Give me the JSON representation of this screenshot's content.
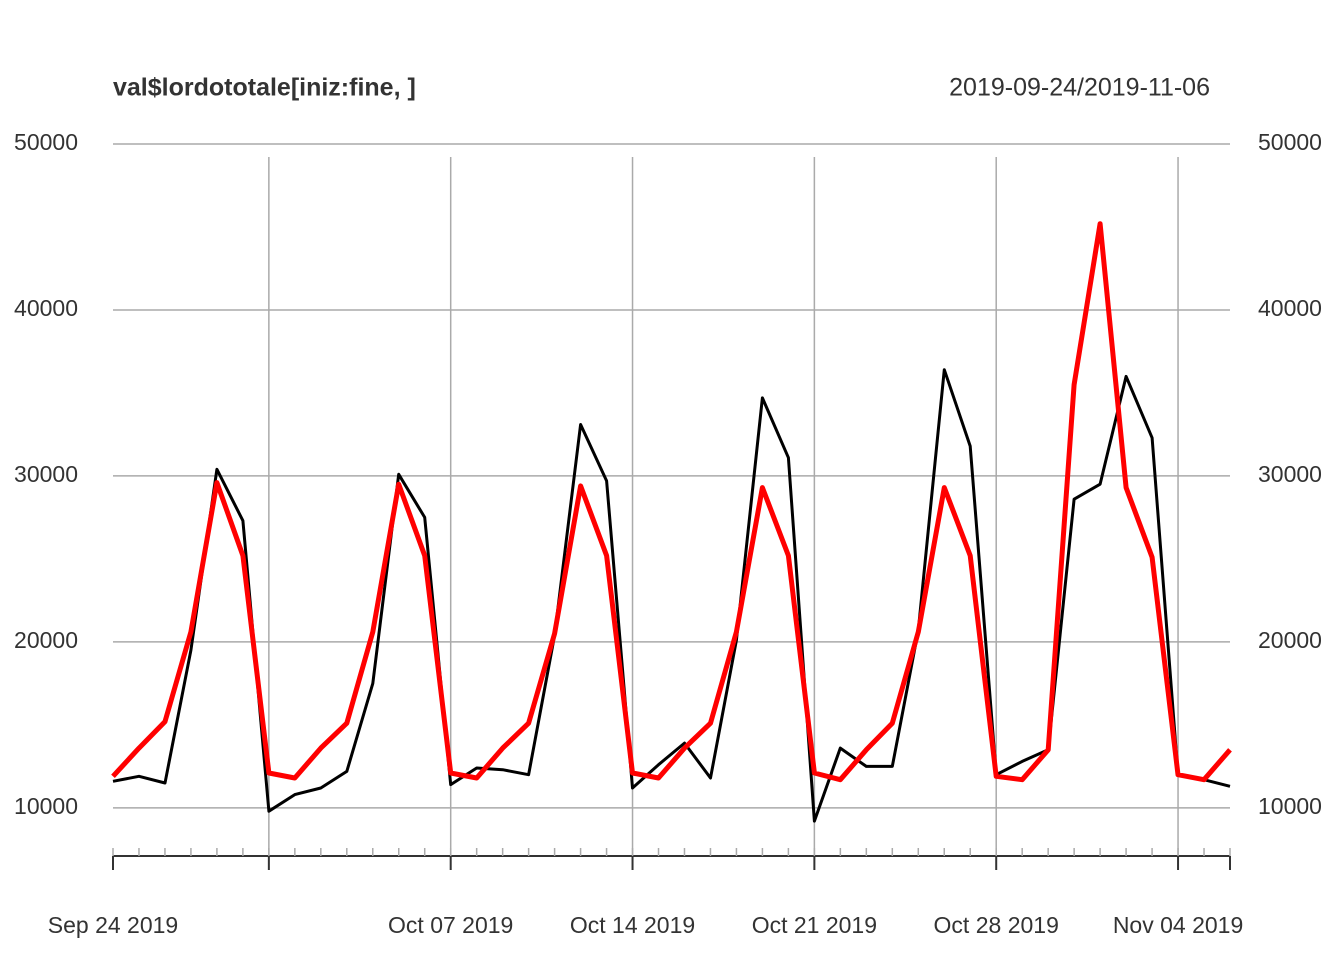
{
  "chart_data": {
    "type": "line",
    "title": "val$lordototale[iniz:fine, ]",
    "subtitle": "2019-09-24/2019-11-06",
    "x": [
      "2019-09-24",
      "2019-09-25",
      "2019-09-26",
      "2019-09-27",
      "2019-09-28",
      "2019-09-29",
      "2019-09-30",
      "2019-10-01",
      "2019-10-02",
      "2019-10-03",
      "2019-10-04",
      "2019-10-05",
      "2019-10-06",
      "2019-10-07",
      "2019-10-08",
      "2019-10-09",
      "2019-10-10",
      "2019-10-11",
      "2019-10-12",
      "2019-10-13",
      "2019-10-14",
      "2019-10-15",
      "2019-10-16",
      "2019-10-17",
      "2019-10-18",
      "2019-10-19",
      "2019-10-20",
      "2019-10-21",
      "2019-10-22",
      "2019-10-23",
      "2019-10-24",
      "2019-10-25",
      "2019-10-26",
      "2019-10-27",
      "2019-10-28",
      "2019-10-29",
      "2019-10-30",
      "2019-10-31",
      "2019-11-01",
      "2019-11-02",
      "2019-11-03",
      "2019-11-04",
      "2019-11-05",
      "2019-11-06"
    ],
    "series": [
      {
        "color": "#000000",
        "width": 3,
        "values": [
          11600,
          11900,
          11500,
          19500,
          30400,
          27300,
          9800,
          10800,
          11200,
          12200,
          17500,
          30100,
          27500,
          11400,
          12400,
          12300,
          12000,
          20400,
          33100,
          29700,
          11200,
          12600,
          13900,
          11800,
          20100,
          34700,
          31100,
          9200,
          13600,
          12500,
          12500,
          20700,
          36400,
          31800,
          12000,
          12800,
          13500,
          28600,
          29500,
          36000,
          32300,
          12000,
          11700,
          11300
        ]
      },
      {
        "color": "#ff0000",
        "width": 5,
        "values": [
          11900,
          13600,
          15200,
          20600,
          29600,
          25200,
          12100,
          11800,
          13600,
          15100,
          20600,
          29500,
          25200,
          12100,
          11800,
          13600,
          15100,
          20500,
          29400,
          25200,
          12100,
          11800,
          13600,
          15100,
          20600,
          29300,
          25200,
          12100,
          11700,
          13500,
          15100,
          20600,
          29300,
          25200,
          11900,
          11700,
          13500,
          35500,
          45200,
          29300,
          25100,
          12000,
          11700,
          13500
        ]
      }
    ],
    "xlim": [
      "2019-09-24",
      "2019-11-06"
    ],
    "xticks": [
      {
        "value": "2019-09-24",
        "label": "Sep 24 2019"
      },
      {
        "value": "2019-10-07",
        "label": "Oct 07 2019"
      },
      {
        "value": "2019-10-14",
        "label": "Oct 14 2019"
      },
      {
        "value": "2019-10-21",
        "label": "Oct 21 2019"
      },
      {
        "value": "2019-10-28",
        "label": "Oct 28 2019"
      },
      {
        "value": "2019-11-04",
        "label": "Nov 04 2019"
      }
    ],
    "xgrid": [
      "2019-09-30",
      "2019-10-07",
      "2019-10-14",
      "2019-10-21",
      "2019-10-28",
      "2019-11-04"
    ],
    "ylim": [
      7100,
      50000
    ],
    "yticks": [
      10000,
      20000,
      30000,
      40000,
      50000
    ],
    "grid": true
  }
}
